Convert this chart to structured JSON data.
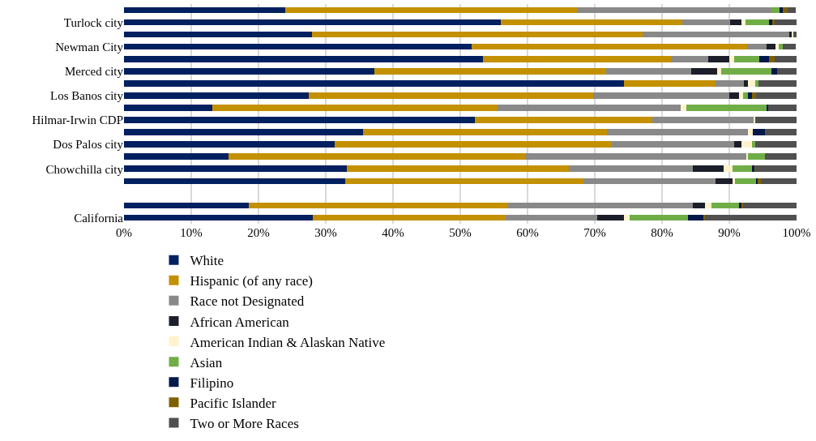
{
  "chart_data": {
    "type": "bar",
    "orientation": "horizontal",
    "stacked": true,
    "categories": [
      null,
      "Turlock city",
      null,
      "Newman City",
      null,
      "Merced city",
      null,
      "Los Banos city",
      null,
      "Hilmar-Irwin CDP",
      null,
      "Dos Palos city",
      null,
      "Chowchilla city",
      null,
      null,
      null,
      "California"
    ],
    "series": [
      {
        "name": "White",
        "color": "#002060",
        "values": [
          24.0,
          56.0,
          28.0,
          51.7,
          53.4,
          37.2,
          74.3,
          27.5,
          13.1,
          52.2,
          35.6,
          31.3,
          15.6,
          33.1,
          32.9,
          null,
          18.6,
          28.1
        ]
      },
      {
        "name": "Hispanic (of any race)",
        "color": "#c39000",
        "values": [
          43.4,
          27.0,
          49.1,
          41.0,
          27.9,
          34.5,
          13.6,
          42.2,
          42.4,
          26.3,
          36.2,
          41.2,
          44.2,
          33.0,
          35.4,
          null,
          38.5,
          28.6
        ]
      },
      {
        "name": "Race not Designated",
        "color": "#898989",
        "values": [
          28.9,
          7.1,
          21.8,
          2.9,
          5.6,
          12.6,
          4.3,
          20.3,
          27.3,
          15.2,
          21.0,
          18.2,
          32.8,
          18.5,
          19.6,
          null,
          27.5,
          13.7
        ]
      },
      {
        "name": "African American",
        "color": "#1c1f2a",
        "values": [
          null,
          1.7,
          0.4,
          1.3,
          3.1,
          3.9,
          0.6,
          1.4,
          0,
          0,
          0,
          1.1,
          0,
          4.6,
          2.6,
          null,
          1.8,
          3.9
        ]
      },
      {
        "name": "American Indian & Alaskan Native",
        "color": "#fff2cc",
        "values": [
          0,
          0.6,
          0.2,
          0.4,
          0.7,
          0.6,
          1.0,
          0.6,
          0.8,
          0.2,
          0.7,
          1.6,
          0.2,
          1.3,
          0.4,
          null,
          0.9,
          0.9
        ]
      },
      {
        "name": "Asian",
        "color": "#70ad47",
        "values": [
          1.2,
          3.5,
          0,
          0.7,
          3.8,
          7.5,
          0.5,
          0.8,
          12.0,
          0,
          0,
          0.5,
          2.5,
          2.9,
          3.1,
          null,
          4.1,
          8.6
        ]
      },
      {
        "name": "Filipino",
        "color": "#00184a",
        "values": [
          0.5,
          0.5,
          0,
          null,
          1.4,
          0.8,
          0,
          0.6,
          0.2,
          0,
          1.8,
          0,
          0,
          0.4,
          0.2,
          null,
          0.5,
          2.4
        ]
      },
      {
        "name": "Pacific Islander",
        "color": "#7f6000",
        "values": [
          0.7,
          0.3,
          0,
          0,
          0.9,
          0,
          0,
          0.6,
          0,
          0,
          0,
          0,
          0,
          0.1,
          0.5,
          null,
          0.1,
          0.2
        ]
      },
      {
        "name": "Two or More Races",
        "color": "#505050",
        "values": [
          1.2,
          3.3,
          0.5,
          1.9,
          3.2,
          2.9,
          5.7,
          6.0,
          4.2,
          6.1,
          4.7,
          6.1,
          4.7,
          6.1,
          5.3,
          null,
          8.0,
          13.6
        ]
      }
    ],
    "xlim": [
      0,
      100
    ],
    "xticks": [
      {
        "value": 0,
        "label": "0%"
      },
      {
        "value": 10,
        "label": "10%"
      },
      {
        "value": 20,
        "label": "20%"
      },
      {
        "value": 30,
        "label": "30%"
      },
      {
        "value": 40,
        "label": "40%"
      },
      {
        "value": 50,
        "label": "50%"
      },
      {
        "value": 60,
        "label": "60%"
      },
      {
        "value": 70,
        "label": "70%"
      },
      {
        "value": 80,
        "label": "80%"
      },
      {
        "value": 90,
        "label": "90%"
      },
      {
        "value": 100,
        "label": "100%"
      }
    ],
    "grid": "x",
    "legend": "bottom"
  }
}
